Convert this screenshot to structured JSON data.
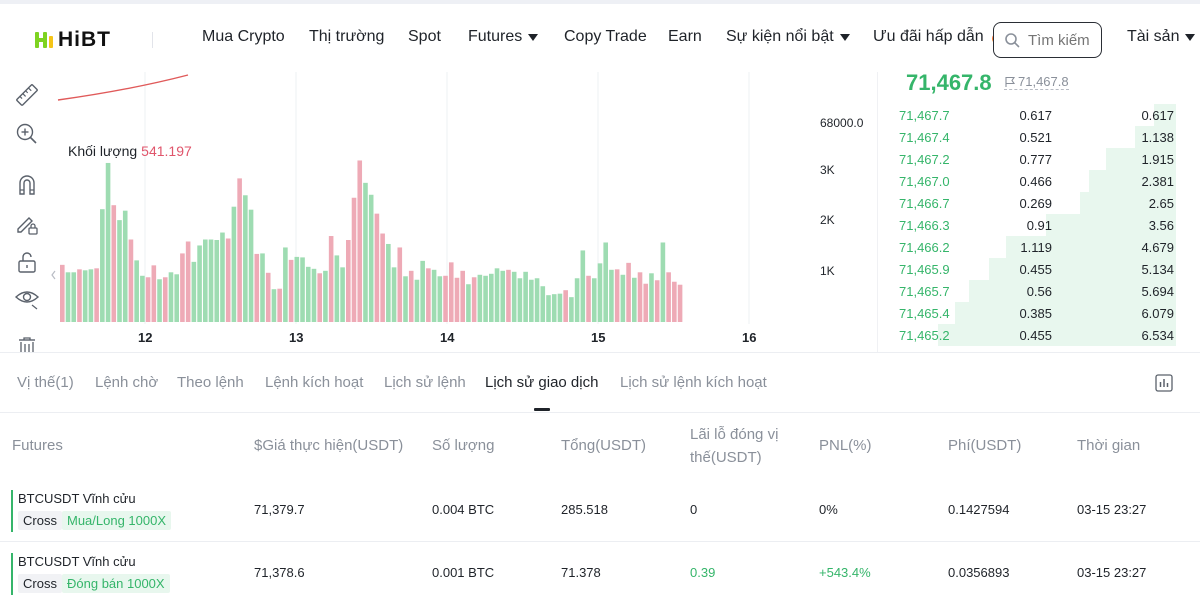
{
  "header": {
    "logo": "HiBT",
    "nav": [
      {
        "label": "Mua Crypto",
        "dropdown": false
      },
      {
        "label": "Thị trường",
        "dropdown": false
      },
      {
        "label": "Spot",
        "dropdown": false
      },
      {
        "label": "Futures",
        "dropdown": true
      },
      {
        "label": "Copy Trade",
        "dropdown": false
      },
      {
        "label": "Earn",
        "dropdown": false
      },
      {
        "label": "Sự kiện nổi bật",
        "dropdown": true
      },
      {
        "label": "Ưu đãi hấp dẫn",
        "dropdown": false
      }
    ],
    "search_placeholder": "Tìm kiếm",
    "assets_label": "Tài sản"
  },
  "toolbar": {
    "icons": [
      "ruler-icon",
      "zoom-in-icon",
      "magnet-icon",
      "pencil-lock-icon",
      "unlock-icon",
      "eye-icon",
      "trash-icon"
    ]
  },
  "chart": {
    "volume_label": "Khối lượng",
    "volume_value": "541.197",
    "price_tick": "68000.0",
    "volume_ticks": [
      "3K",
      "2K",
      "1K"
    ],
    "x_labels": [
      "12",
      "13",
      "14",
      "15",
      "16"
    ],
    "colors": {
      "up": "#9edcb2",
      "down": "#eeaab6",
      "line": "#e05a5a"
    }
  },
  "chart_data": {
    "type": "bar",
    "title": "",
    "xlabel": "",
    "ylabel": "",
    "x_ticks": [
      "12",
      "13",
      "14",
      "15",
      "16"
    ],
    "ylim": [
      0,
      3000
    ],
    "volume": [
      {
        "v": 1150,
        "up": false
      },
      {
        "v": 1000,
        "up": true
      },
      {
        "v": 1000,
        "up": true
      },
      {
        "v": 1060,
        "up": false
      },
      {
        "v": 1040,
        "up": true
      },
      {
        "v": 1060,
        "up": true
      },
      {
        "v": 1080,
        "up": false
      },
      {
        "v": 2270,
        "up": true
      },
      {
        "v": 3200,
        "up": true
      },
      {
        "v": 2350,
        "up": false
      },
      {
        "v": 2050,
        "up": true
      },
      {
        "v": 2240,
        "up": true
      },
      {
        "v": 1660,
        "up": false
      },
      {
        "v": 1240,
        "up": true
      },
      {
        "v": 930,
        "up": true
      },
      {
        "v": 900,
        "up": false
      },
      {
        "v": 1140,
        "up": false
      },
      {
        "v": 860,
        "up": true
      },
      {
        "v": 900,
        "up": false
      },
      {
        "v": 1000,
        "up": true
      },
      {
        "v": 960,
        "up": true
      },
      {
        "v": 1380,
        "up": false
      },
      {
        "v": 1620,
        "up": false
      },
      {
        "v": 1210,
        "up": true
      },
      {
        "v": 1540,
        "up": true
      },
      {
        "v": 1660,
        "up": true
      },
      {
        "v": 1660,
        "up": true
      },
      {
        "v": 1650,
        "up": true
      },
      {
        "v": 1800,
        "up": true
      },
      {
        "v": 1680,
        "up": false
      },
      {
        "v": 2320,
        "up": true
      },
      {
        "v": 2890,
        "up": false
      },
      {
        "v": 2550,
        "up": true
      },
      {
        "v": 2260,
        "up": true
      },
      {
        "v": 1370,
        "up": false
      },
      {
        "v": 1380,
        "up": true
      },
      {
        "v": 990,
        "up": false
      },
      {
        "v": 660,
        "up": true
      },
      {
        "v": 670,
        "up": false
      },
      {
        "v": 1500,
        "up": true
      },
      {
        "v": 1250,
        "up": false
      },
      {
        "v": 1310,
        "up": true
      },
      {
        "v": 1300,
        "up": true
      },
      {
        "v": 1110,
        "up": true
      },
      {
        "v": 1070,
        "up": true
      },
      {
        "v": 980,
        "up": false
      },
      {
        "v": 1030,
        "up": true
      },
      {
        "v": 1730,
        "up": false
      },
      {
        "v": 1340,
        "up": true
      },
      {
        "v": 1100,
        "up": true
      },
      {
        "v": 1650,
        "up": false
      },
      {
        "v": 2500,
        "up": false
      },
      {
        "v": 3250,
        "up": false
      },
      {
        "v": 2800,
        "up": true
      },
      {
        "v": 2560,
        "up": true
      },
      {
        "v": 2180,
        "up": false
      },
      {
        "v": 1780,
        "up": false
      },
      {
        "v": 1570,
        "up": true
      },
      {
        "v": 1100,
        "up": true
      },
      {
        "v": 1500,
        "up": false
      },
      {
        "v": 920,
        "up": true
      },
      {
        "v": 1030,
        "up": false
      },
      {
        "v": 850,
        "up": true
      },
      {
        "v": 1230,
        "up": true
      },
      {
        "v": 1080,
        "up": false
      },
      {
        "v": 1050,
        "up": true
      },
      {
        "v": 920,
        "up": true
      },
      {
        "v": 930,
        "up": false
      },
      {
        "v": 1200,
        "up": false
      },
      {
        "v": 890,
        "up": false
      },
      {
        "v": 1030,
        "up": false
      },
      {
        "v": 760,
        "up": true
      },
      {
        "v": 900,
        "up": false
      },
      {
        "v": 950,
        "up": true
      },
      {
        "v": 930,
        "up": true
      },
      {
        "v": 970,
        "up": true
      },
      {
        "v": 1080,
        "up": true
      },
      {
        "v": 1030,
        "up": true
      },
      {
        "v": 1050,
        "up": false
      },
      {
        "v": 1010,
        "up": true
      },
      {
        "v": 880,
        "up": true
      },
      {
        "v": 1010,
        "up": true
      },
      {
        "v": 850,
        "up": true
      },
      {
        "v": 880,
        "up": true
      },
      {
        "v": 720,
        "up": true
      },
      {
        "v": 540,
        "up": true
      },
      {
        "v": 560,
        "up": true
      },
      {
        "v": 570,
        "up": true
      },
      {
        "v": 640,
        "up": false
      },
      {
        "v": 500,
        "up": true
      },
      {
        "v": 880,
        "up": true
      },
      {
        "v": 1440,
        "up": true
      },
      {
        "v": 930,
        "up": false
      },
      {
        "v": 880,
        "up": true
      },
      {
        "v": 1180,
        "up": true
      },
      {
        "v": 1600,
        "up": true
      },
      {
        "v": 1050,
        "up": true
      },
      {
        "v": 1060,
        "up": false
      },
      {
        "v": 950,
        "up": true
      },
      {
        "v": 1190,
        "up": false
      },
      {
        "v": 890,
        "up": true
      },
      {
        "v": 1000,
        "up": false
      },
      {
        "v": 770,
        "up": false
      },
      {
        "v": 980,
        "up": true
      },
      {
        "v": 840,
        "up": false
      },
      {
        "v": 1600,
        "up": true
      },
      {
        "v": 1000,
        "up": false
      },
      {
        "v": 810,
        "up": false
      },
      {
        "v": 750,
        "up": false
      }
    ]
  },
  "orderbook": {
    "last_price": "71,467.8",
    "mark_price": "71,467.8",
    "bids": [
      {
        "price": "71,467.7",
        "qty": "0.617",
        "total": "0.617",
        "depth": 0.094
      },
      {
        "price": "71,467.4",
        "qty": "0.521",
        "total": "1.138",
        "depth": 0.174
      },
      {
        "price": "71,467.2",
        "qty": "0.777",
        "total": "1.915",
        "depth": 0.293
      },
      {
        "price": "71,467.0",
        "qty": "0.466",
        "total": "2.381",
        "depth": 0.364
      },
      {
        "price": "71,466.7",
        "qty": "0.269",
        "total": "2.65",
        "depth": 0.405
      },
      {
        "price": "71,466.3",
        "qty": "0.91",
        "total": "3.56",
        "depth": 0.545
      },
      {
        "price": "71,466.2",
        "qty": "1.119",
        "total": "4.679",
        "depth": 0.716
      },
      {
        "price": "71,465.9",
        "qty": "0.455",
        "total": "5.134",
        "depth": 0.786
      },
      {
        "price": "71,465.7",
        "qty": "0.56",
        "total": "5.694",
        "depth": 0.871
      },
      {
        "price": "71,465.4",
        "qty": "0.385",
        "total": "6.079",
        "depth": 0.93
      },
      {
        "price": "71,465.2",
        "qty": "0.455",
        "total": "6.534",
        "depth": 1.0
      }
    ]
  },
  "tabs": [
    {
      "label": "Vị thế(1)",
      "active": false
    },
    {
      "label": "Lệnh chờ",
      "active": false
    },
    {
      "label": "Theo lệnh",
      "active": false
    },
    {
      "label": "Lệnh kích hoạt",
      "active": false
    },
    {
      "label": "Lịch sử lệnh",
      "active": false
    },
    {
      "label": "Lịch sử giao dịch",
      "active": true
    },
    {
      "label": "Lịch sử lệnh kích hoạt",
      "active": false
    }
  ],
  "table": {
    "headers": [
      "Futures",
      "$Giá thực hiện(USDT)",
      "Số lượng",
      "Tổng(USDT)",
      "Lãi lỗ đóng vị thế(USDT)",
      "PNL(%)",
      "Phí(USDT)",
      "Thời gian"
    ],
    "rows": [
      {
        "symbol": "BTCUSDT Vĩnh cửu",
        "mode": "Cross",
        "side": "Mua/Long 1000X",
        "price": "71,379.7",
        "qty": "0.004 BTC",
        "total": "285.518",
        "pnl": "0",
        "pnl_pct": "0%",
        "fee": "0.1427594",
        "time": "03-15 23:27",
        "positive": false
      },
      {
        "symbol": "BTCUSDT Vĩnh cửu",
        "mode": "Cross",
        "side": "Đóng bán 1000X",
        "price": "71,378.6",
        "qty": "0.001 BTC",
        "total": "71.378",
        "pnl": "0.39",
        "pnl_pct": "+543.4%",
        "fee": "0.0356893",
        "time": "03-15 23:27",
        "positive": true
      }
    ]
  }
}
